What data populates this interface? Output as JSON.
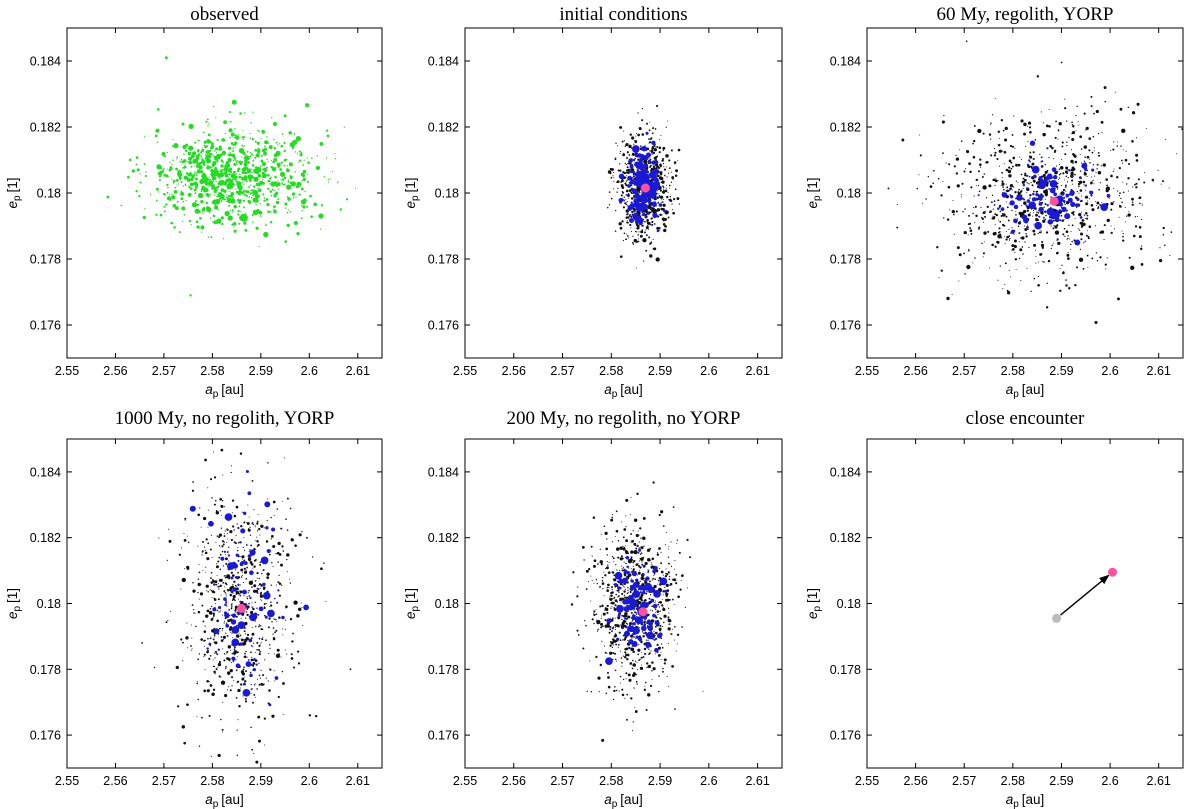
{
  "chart_data": [
    {
      "type": "scatter",
      "title": "observed",
      "xlabel_main": "a",
      "xlabel_sub": "p",
      "xlabel_unit": "[au]",
      "ylabel_main": "e",
      "ylabel_sub": "p",
      "ylabel_unit": "[1]",
      "xlim": [
        2.55,
        2.615
      ],
      "ylim": [
        0.175,
        0.185
      ],
      "xticks": [
        "2.55",
        "2.56",
        "2.57",
        "2.58",
        "2.59",
        "2.6",
        "2.61"
      ],
      "yticks": [
        "0.176",
        "0.178",
        "0.18",
        "0.182",
        "0.184"
      ],
      "cloud": {
        "color": "#22dd22",
        "count": 900,
        "cx": 2.584,
        "cy": 0.1805,
        "sx": 0.0085,
        "sy": 0.0007,
        "seed": 11
      },
      "points": [
        {
          "x": 2.5865,
          "y": 0.17925,
          "color": "#22dd22",
          "size": 4
        },
        {
          "x": 2.5845,
          "y": 0.18275,
          "color": "#22dd22",
          "size": 2.5
        },
        {
          "x": 2.5805,
          "y": 0.1806,
          "color": "#22dd22",
          "size": 3.5
        },
        {
          "x": 2.5785,
          "y": 0.1804,
          "color": "#22dd22",
          "size": 3.5
        },
        {
          "x": 2.5835,
          "y": 0.1802,
          "color": "#22dd22",
          "size": 3
        },
        {
          "x": 2.5895,
          "y": 0.1807,
          "color": "#22dd22",
          "size": 3
        },
        {
          "x": 2.5705,
          "y": 0.1841,
          "color": "#22dd22",
          "size": 1.5
        },
        {
          "x": 2.5755,
          "y": 0.1769,
          "color": "#22dd22",
          "size": 1.2
        },
        {
          "x": 2.6065,
          "y": 0.1795,
          "color": "#22dd22",
          "size": 1.2
        }
      ]
    },
    {
      "type": "scatter",
      "title": "initial conditions",
      "xlabel_main": "a",
      "xlabel_sub": "p",
      "xlabel_unit": "[au]",
      "ylabel_main": "e",
      "ylabel_sub": "p",
      "ylabel_unit": "[1]",
      "xlim": [
        2.55,
        2.615
      ],
      "ylim": [
        0.175,
        0.185
      ],
      "xticks": [
        "2.55",
        "2.56",
        "2.57",
        "2.58",
        "2.59",
        "2.6",
        "2.61"
      ],
      "yticks": [
        "0.176",
        "0.178",
        "0.18",
        "0.182",
        "0.184"
      ],
      "cloud": {
        "color": "#111111",
        "count": 800,
        "cx": 2.5865,
        "cy": 0.1801,
        "sx": 0.0027,
        "sy": 0.0008,
        "seed": 23
      },
      "cloud2": {
        "color": "#1a1ad6",
        "count": 220,
        "cx": 2.5865,
        "cy": 0.1801,
        "sx": 0.0017,
        "sy": 0.0005,
        "seed": 29
      },
      "points": [
        {
          "x": 2.587,
          "y": 0.18015,
          "color": "#ff4fa0",
          "size": 4.5
        }
      ]
    },
    {
      "type": "scatter",
      "title": "60 My, regolith, YORP",
      "xlabel_main": "a",
      "xlabel_sub": "p",
      "xlabel_unit": "[au]",
      "ylabel_main": "e",
      "ylabel_sub": "p",
      "ylabel_unit": "[1]",
      "xlim": [
        2.55,
        2.615
      ],
      "ylim": [
        0.175,
        0.185
      ],
      "xticks": [
        "2.55",
        "2.56",
        "2.57",
        "2.58",
        "2.59",
        "2.6",
        "2.61"
      ],
      "yticks": [
        "0.176",
        "0.178",
        "0.18",
        "0.182",
        "0.184"
      ],
      "cloud": {
        "color": "#111111",
        "count": 900,
        "cx": 2.587,
        "cy": 0.1799,
        "sx": 0.0105,
        "sy": 0.0012,
        "seed": 37,
        "tilt": 0.075
      },
      "cloud2": {
        "color": "#1a1ad6",
        "count": 120,
        "cx": 2.587,
        "cy": 0.1799,
        "sx": 0.0055,
        "sy": 0.0006,
        "seed": 41
      },
      "points": [
        {
          "x": 2.5885,
          "y": 0.17975,
          "color": "#ff4fa0",
          "size": 4.5
        },
        {
          "x": 2.5705,
          "y": 0.1846,
          "color": "#111111",
          "size": 0.8
        }
      ]
    },
    {
      "type": "scatter",
      "title": "1000 My, no regolith, YORP",
      "xlabel_main": "a",
      "xlabel_sub": "p",
      "xlabel_unit": "[au]",
      "ylabel_main": "e",
      "ylabel_sub": "p",
      "ylabel_unit": "[1]",
      "xlim": [
        2.55,
        2.615
      ],
      "ylim": [
        0.175,
        0.185
      ],
      "xticks": [
        "2.55",
        "2.56",
        "2.57",
        "2.58",
        "2.59",
        "2.6",
        "2.61"
      ],
      "yticks": [
        "0.176",
        "0.178",
        "0.18",
        "0.182",
        "0.184"
      ],
      "cloud": {
        "color": "#111111",
        "count": 800,
        "cx": 2.5855,
        "cy": 0.1799,
        "sx": 0.0058,
        "sy": 0.0019,
        "seed": 53
      },
      "cloud2": {
        "color": "#1a1ad6",
        "count": 110,
        "cx": 2.586,
        "cy": 0.1799,
        "sx": 0.0035,
        "sy": 0.0014,
        "seed": 59
      },
      "points": [
        {
          "x": 2.586,
          "y": 0.17985,
          "color": "#ff4fa0",
          "size": 4.5
        },
        {
          "x": 2.5655,
          "y": 0.1788,
          "color": "#111111",
          "size": 0.9
        },
        {
          "x": 2.6085,
          "y": 0.178,
          "color": "#111111",
          "size": 0.9
        }
      ]
    },
    {
      "type": "scatter",
      "title": "200 My, no regolith, no YORP",
      "xlabel_main": "a",
      "xlabel_sub": "p",
      "xlabel_unit": "[au]",
      "ylabel_main": "e",
      "ylabel_sub": "p",
      "ylabel_unit": "[1]",
      "xlim": [
        2.55,
        2.615
      ],
      "ylim": [
        0.175,
        0.185
      ],
      "xticks": [
        "2.55",
        "2.56",
        "2.57",
        "2.58",
        "2.59",
        "2.6",
        "2.61"
      ],
      "yticks": [
        "0.176",
        "0.178",
        "0.18",
        "0.182",
        "0.184"
      ],
      "cloud": {
        "color": "#111111",
        "count": 850,
        "cx": 2.5845,
        "cy": 0.1799,
        "sx": 0.0042,
        "sy": 0.0012,
        "seed": 67
      },
      "cloud2": {
        "color": "#1a1ad6",
        "count": 150,
        "cx": 2.5855,
        "cy": 0.1799,
        "sx": 0.0028,
        "sy": 0.0008,
        "seed": 71
      },
      "points": [
        {
          "x": 2.5865,
          "y": 0.17975,
          "color": "#ff4fa0",
          "size": 4.5
        }
      ]
    },
    {
      "type": "scatter",
      "title": "close encounter",
      "xlabel_main": "a",
      "xlabel_sub": "p",
      "xlabel_unit": "[au]",
      "ylabel_main": "e",
      "ylabel_sub": "p",
      "ylabel_unit": "[1]",
      "xlim": [
        2.55,
        2.615
      ],
      "ylim": [
        0.175,
        0.185
      ],
      "xticks": [
        "2.55",
        "2.56",
        "2.57",
        "2.58",
        "2.59",
        "2.6",
        "2.61"
      ],
      "yticks": [
        "0.176",
        "0.178",
        "0.18",
        "0.182",
        "0.184"
      ],
      "points": [
        {
          "x": 2.589,
          "y": 0.17955,
          "color": "#bbbbbb",
          "size": 4.5
        },
        {
          "x": 2.6005,
          "y": 0.18095,
          "color": "#ff4fa0",
          "size": 4.5
        }
      ],
      "arrow": {
        "from": [
          2.589,
          0.17955
        ],
        "to": [
          2.6005,
          0.18095
        ],
        "color": "#000000"
      }
    }
  ]
}
